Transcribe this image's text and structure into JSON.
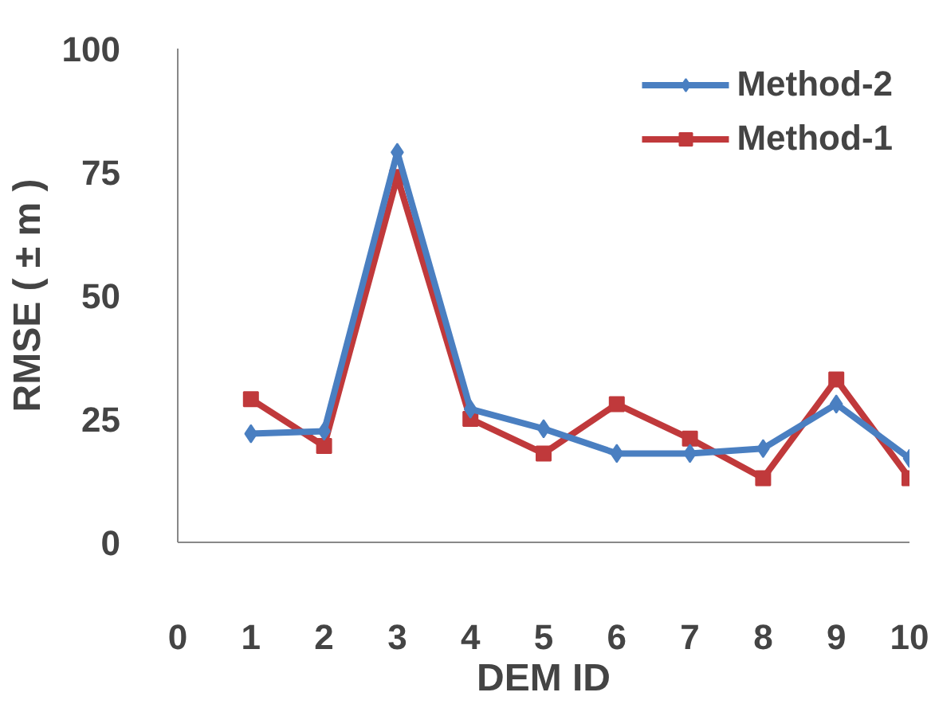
{
  "chart_data": {
    "type": "line",
    "xlabel": "DEM ID",
    "ylabel": "RMSE ( ± m )",
    "x": [
      1,
      2,
      3,
      4,
      5,
      6,
      7,
      8,
      9,
      10
    ],
    "series": [
      {
        "name": "Method-2",
        "color": "#4a7fc1",
        "marker": "diamond",
        "values": [
          22,
          22.5,
          79,
          27,
          23,
          18,
          18,
          19,
          28,
          17
        ]
      },
      {
        "name": "Method-1",
        "color": "#c0393b",
        "marker": "square",
        "values": [
          29,
          19.5,
          74,
          25,
          18,
          28,
          21,
          13,
          33,
          13
        ]
      }
    ],
    "xlim": [
      0,
      10
    ],
    "ylim": [
      0,
      100
    ],
    "xticks": [
      0,
      1,
      2,
      3,
      4,
      5,
      6,
      7,
      8,
      9,
      10
    ],
    "yticks": [
      0,
      25,
      50,
      75,
      100
    ],
    "grid": false,
    "legend": "top right",
    "line_style": "solid"
  }
}
